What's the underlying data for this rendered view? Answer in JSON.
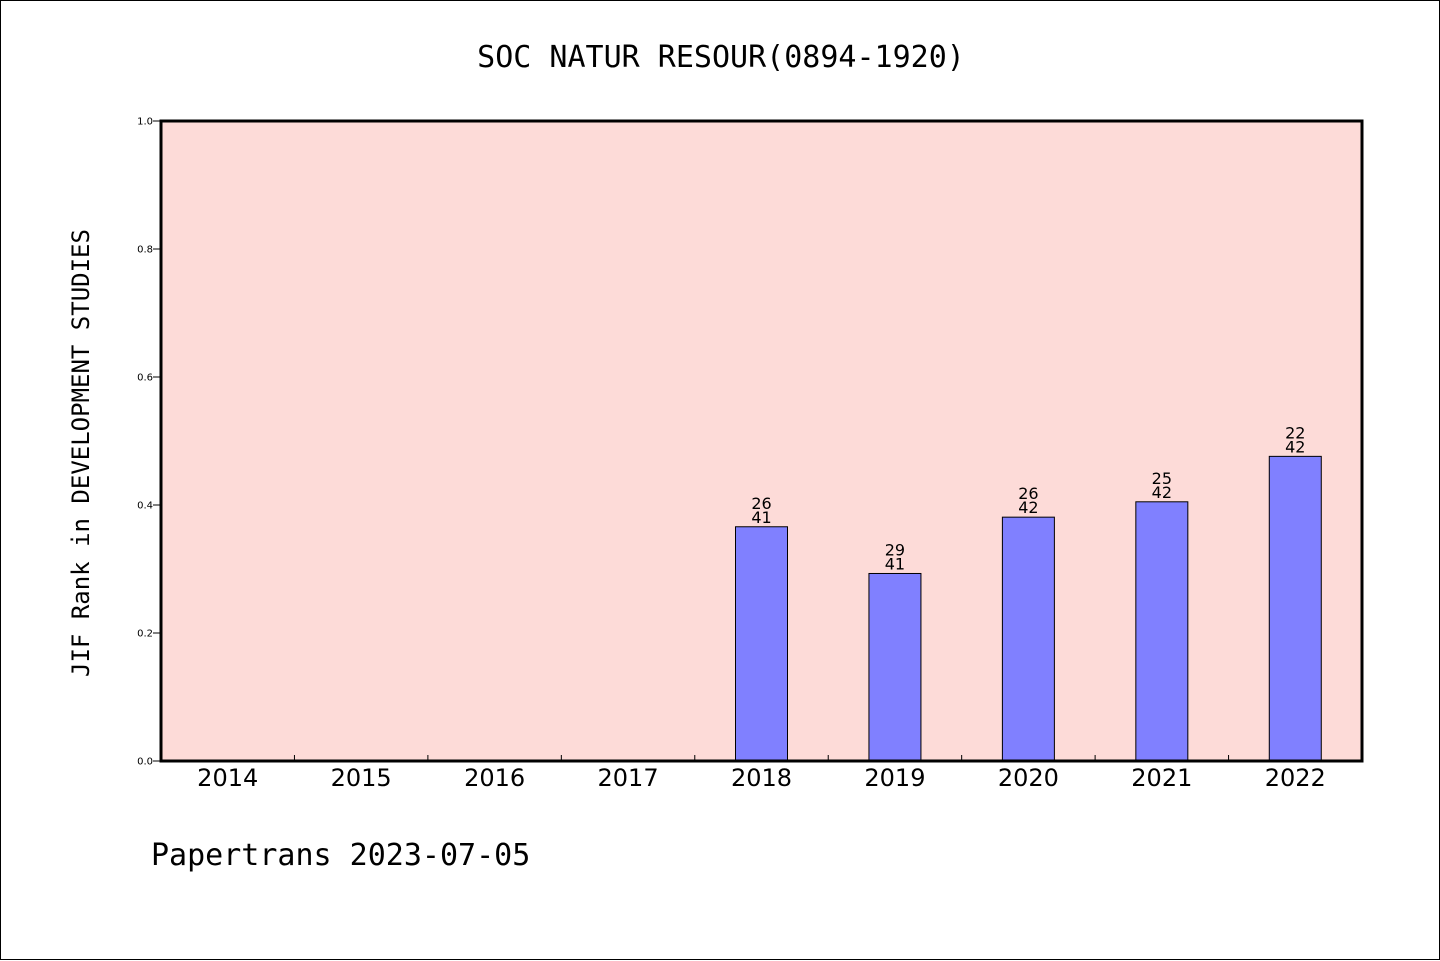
{
  "chart_data": {
    "type": "bar",
    "title": "SOC NATUR RESOUR(0894-1920)",
    "ylabel": "JIF Rank in DEVELOPMENT STUDIES",
    "xlabel": "",
    "ylim": [
      0.0,
      1.0
    ],
    "yticks": [
      "0.0",
      "0.2",
      "0.4",
      "0.6",
      "0.8",
      "1.0"
    ],
    "ytick_values": [
      0.0,
      0.2,
      0.4,
      0.6,
      0.8,
      1.0
    ],
    "grid": false,
    "categories": [
      "2014",
      "2015",
      "2016",
      "2017",
      "2018",
      "2019",
      "2020",
      "2021",
      "2022"
    ],
    "values": [
      null,
      null,
      null,
      null,
      0.366,
      0.293,
      0.381,
      0.405,
      0.476
    ],
    "labels": [
      null,
      null,
      null,
      null,
      {
        "rank": "26",
        "total": "41"
      },
      {
        "rank": "29",
        "total": "41"
      },
      {
        "rank": "26",
        "total": "42"
      },
      {
        "rank": "25",
        "total": "42"
      },
      {
        "rank": "22",
        "total": "42"
      }
    ],
    "colors": {
      "plot_background": "#fddbd8",
      "bar_fill": "#8080ff",
      "bar_edge": "#000000",
      "axes": "#000000"
    }
  },
  "footer": {
    "text": "Papertrans 2023-07-05"
  }
}
